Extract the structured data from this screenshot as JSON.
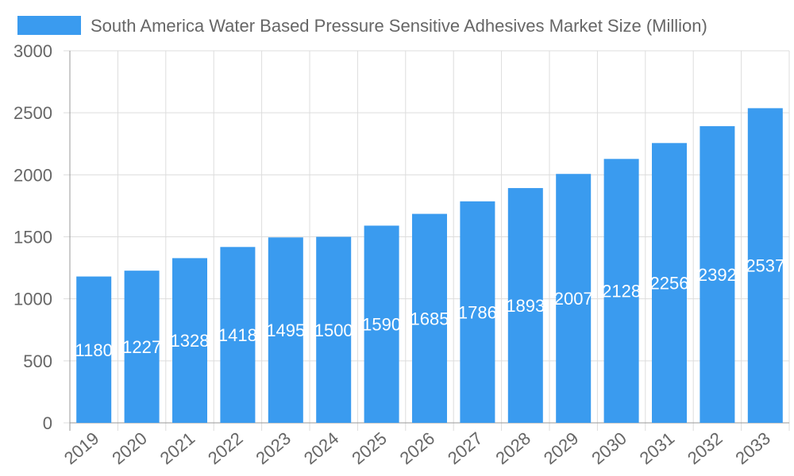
{
  "chart_data": {
    "type": "bar",
    "title": "",
    "xlabel": "",
    "ylabel": "",
    "categories": [
      "2019",
      "2020",
      "2021",
      "2022",
      "2023",
      "2024",
      "2025",
      "2026",
      "2027",
      "2028",
      "2029",
      "2030",
      "2031",
      "2032",
      "2033"
    ],
    "series": [
      {
        "name": "South America Water Based Pressure Sensitive Adhesives Market Size (Million)",
        "values": [
          1180,
          1227,
          1328,
          1418,
          1495,
          1500,
          1590,
          1685,
          1786,
          1893,
          2007,
          2128,
          2256,
          2392,
          2537
        ],
        "color": "#3a9bef"
      }
    ],
    "ylim": [
      0,
      3000
    ],
    "yticks": [
      0,
      500,
      1000,
      1500,
      2000,
      2500,
      3000
    ],
    "grid": true,
    "legend": "top",
    "data_labels": true
  }
}
